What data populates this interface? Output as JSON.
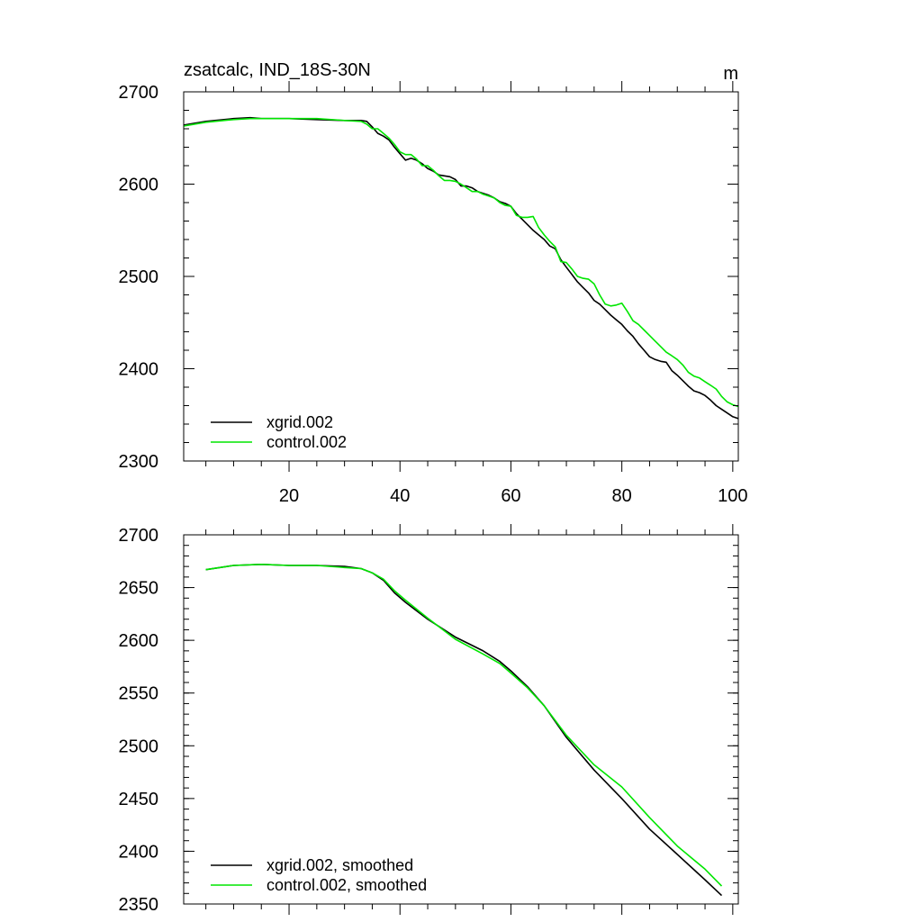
{
  "colors": {
    "xgrid": "#000000",
    "control": "#00e600",
    "axis": "#000000",
    "background": "#ffffff"
  },
  "chart_data": [
    {
      "type": "line",
      "title": "zsatcalc, IND_18S-30N",
      "units_label": "m",
      "xlim": [
        1,
        101
      ],
      "ylim": [
        2300,
        2700
      ],
      "xticks": [
        20,
        40,
        60,
        80,
        100
      ],
      "xtick_labels": [
        "20",
        "40",
        "60",
        "80",
        "100"
      ],
      "yticks": [
        2300,
        2400,
        2500,
        2600,
        2700
      ],
      "ytick_labels": [
        "2300",
        "2400",
        "2500",
        "2600",
        "2700"
      ],
      "legend_position": "bottom-left",
      "series": [
        {
          "name": "xgrid.002",
          "color_key": "xgrid",
          "x": [
            1,
            5,
            10,
            13,
            15,
            20,
            25,
            30,
            33,
            34,
            35,
            36,
            37,
            38,
            39,
            40,
            41,
            42,
            43,
            44,
            45,
            46,
            47,
            48,
            49,
            50,
            51,
            52,
            53,
            54,
            55,
            56,
            57,
            58,
            59,
            60,
            61,
            62,
            63,
            64,
            65,
            66,
            67,
            68,
            69,
            70,
            71,
            72,
            73,
            74,
            75,
            76,
            77,
            78,
            79,
            80,
            81,
            82,
            83,
            84,
            85,
            86,
            87,
            88,
            89,
            90,
            91,
            92,
            93,
            94,
            95,
            96,
            97,
            98,
            99,
            100,
            101
          ],
          "y": [
            2664,
            2668,
            2671,
            2672,
            2671,
            2671,
            2670,
            2669,
            2669,
            2668,
            2662,
            2655,
            2652,
            2648,
            2640,
            2633,
            2626,
            2628,
            2626,
            2622,
            2617,
            2614,
            2610,
            2609,
            2608,
            2605,
            2598,
            2598,
            2596,
            2592,
            2590,
            2588,
            2585,
            2581,
            2579,
            2576,
            2568,
            2562,
            2556,
            2550,
            2545,
            2540,
            2533,
            2530,
            2518,
            2510,
            2502,
            2494,
            2488,
            2482,
            2474,
            2470,
            2464,
            2458,
            2453,
            2448,
            2441,
            2435,
            2427,
            2420,
            2413,
            2410,
            2408,
            2407,
            2398,
            2393,
            2387,
            2381,
            2376,
            2374,
            2371,
            2366,
            2360,
            2356,
            2352,
            2348,
            2346
          ]
        },
        {
          "name": "control.002",
          "color_key": "control",
          "x": [
            1,
            5,
            10,
            13,
            15,
            20,
            25,
            30,
            33,
            34,
            35,
            36,
            37,
            38,
            39,
            40,
            41,
            42,
            43,
            44,
            45,
            46,
            47,
            48,
            49,
            50,
            51,
            52,
            53,
            54,
            55,
            56,
            57,
            58,
            59,
            60,
            61,
            62,
            63,
            64,
            65,
            66,
            67,
            68,
            69,
            70,
            71,
            72,
            73,
            74,
            75,
            76,
            77,
            78,
            79,
            80,
            81,
            82,
            83,
            84,
            85,
            86,
            87,
            88,
            89,
            90,
            91,
            92,
            93,
            94,
            95,
            96,
            97,
            98,
            99,
            100,
            101
          ],
          "y": [
            2663,
            2667,
            2670,
            2671,
            2671,
            2671,
            2671,
            2669,
            2668,
            2665,
            2660,
            2660,
            2655,
            2650,
            2643,
            2635,
            2632,
            2632,
            2627,
            2620,
            2620,
            2615,
            2609,
            2604,
            2604,
            2603,
            2600,
            2596,
            2592,
            2592,
            2589,
            2587,
            2585,
            2580,
            2577,
            2576,
            2566,
            2564,
            2564,
            2565,
            2553,
            2545,
            2538,
            2532,
            2516,
            2515,
            2508,
            2500,
            2498,
            2497,
            2492,
            2480,
            2470,
            2468,
            2469,
            2471,
            2462,
            2452,
            2448,
            2442,
            2436,
            2430,
            2424,
            2418,
            2414,
            2410,
            2404,
            2396,
            2392,
            2390,
            2386,
            2382,
            2378,
            2370,
            2364,
            2361,
            2359
          ]
        }
      ]
    },
    {
      "type": "line",
      "title": "",
      "xlim": [
        1,
        101
      ],
      "ylim": [
        2350,
        2700
      ],
      "xticks": [
        20,
        40,
        60,
        80,
        100
      ],
      "xtick_labels": [],
      "yticks": [
        2350,
        2400,
        2450,
        2500,
        2550,
        2600,
        2650,
        2700
      ],
      "ytick_labels": [
        "2350",
        "2400",
        "2450",
        "2500",
        "2550",
        "2600",
        "2650",
        "2700"
      ],
      "legend_position": "bottom-left",
      "series": [
        {
          "name": "xgrid.002, smoothed",
          "color_key": "xgrid",
          "x": [
            5,
            10,
            15,
            20,
            25,
            30,
            33,
            35,
            37,
            39,
            41,
            45,
            50,
            55,
            58,
            60,
            63,
            66,
            70,
            75,
            80,
            85,
            90,
            95,
            98
          ],
          "y": [
            2667,
            2671,
            2672,
            2671,
            2671,
            2670,
            2668,
            2664,
            2657,
            2645,
            2636,
            2620,
            2603,
            2590,
            2580,
            2571,
            2556,
            2538,
            2508,
            2477,
            2450,
            2421,
            2397,
            2373,
            2358
          ]
        },
        {
          "name": "control.002, smoothed",
          "color_key": "control",
          "x": [
            5,
            10,
            15,
            20,
            25,
            30,
            33,
            35,
            37,
            39,
            41,
            45,
            50,
            55,
            58,
            60,
            63,
            66,
            70,
            75,
            80,
            85,
            90,
            95,
            98
          ],
          "y": [
            2667,
            2671,
            2672,
            2671,
            2671,
            2669,
            2668,
            2664,
            2658,
            2647,
            2638,
            2621,
            2601,
            2587,
            2578,
            2569,
            2555,
            2538,
            2510,
            2482,
            2461,
            2432,
            2405,
            2383,
            2367
          ]
        }
      ]
    }
  ]
}
